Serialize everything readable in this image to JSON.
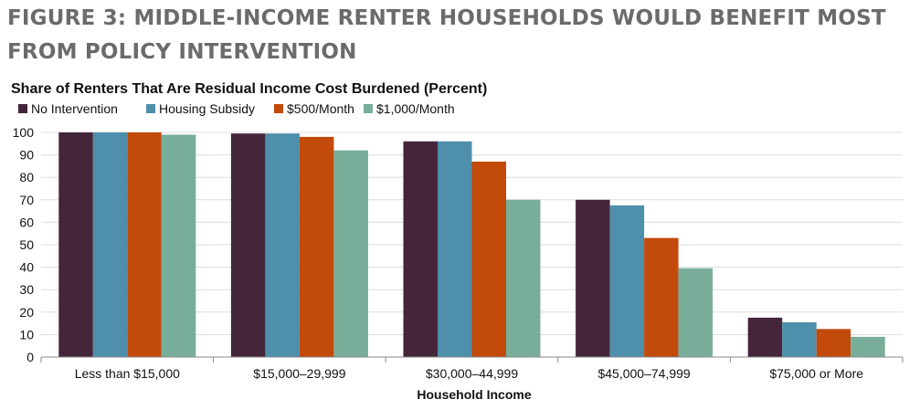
{
  "figure": {
    "title": "FIGURE 3: MIDDLE-INCOME RENTER HOUSEHOLDS WOULD BENEFIT MOST FROM POLICY INTERVENTION"
  },
  "chart_data": {
    "type": "bar",
    "title": "Share of Renters That Are Residual Income Cost Burdened (Percent)",
    "xlabel": "Household Income",
    "ylabel": "",
    "ylim": [
      0,
      100
    ],
    "yticks": [
      0,
      10,
      20,
      30,
      40,
      50,
      60,
      70,
      80,
      90,
      100
    ],
    "grid": true,
    "legend_position": "top-left",
    "categories": [
      "Less than $15,000",
      "$15,000–29,999",
      "$30,000–44,999",
      "$45,000–74,999",
      "$75,000 or More"
    ],
    "series": [
      {
        "name": "No Intervention",
        "color": "#44253a",
        "values": [
          100,
          99.5,
          96,
          70,
          17.5
        ]
      },
      {
        "name": "Housing Subsidy",
        "color": "#4e8fab",
        "values": [
          100,
          99.5,
          96,
          67.5,
          15.5
        ]
      },
      {
        "name": "$500/Month",
        "color": "#c24a0b",
        "values": [
          100,
          98,
          87,
          53,
          12.5
        ]
      },
      {
        "name": "$1,000/Month",
        "color": "#78ae99",
        "values": [
          99,
          92,
          70,
          39.5,
          9
        ]
      }
    ]
  }
}
